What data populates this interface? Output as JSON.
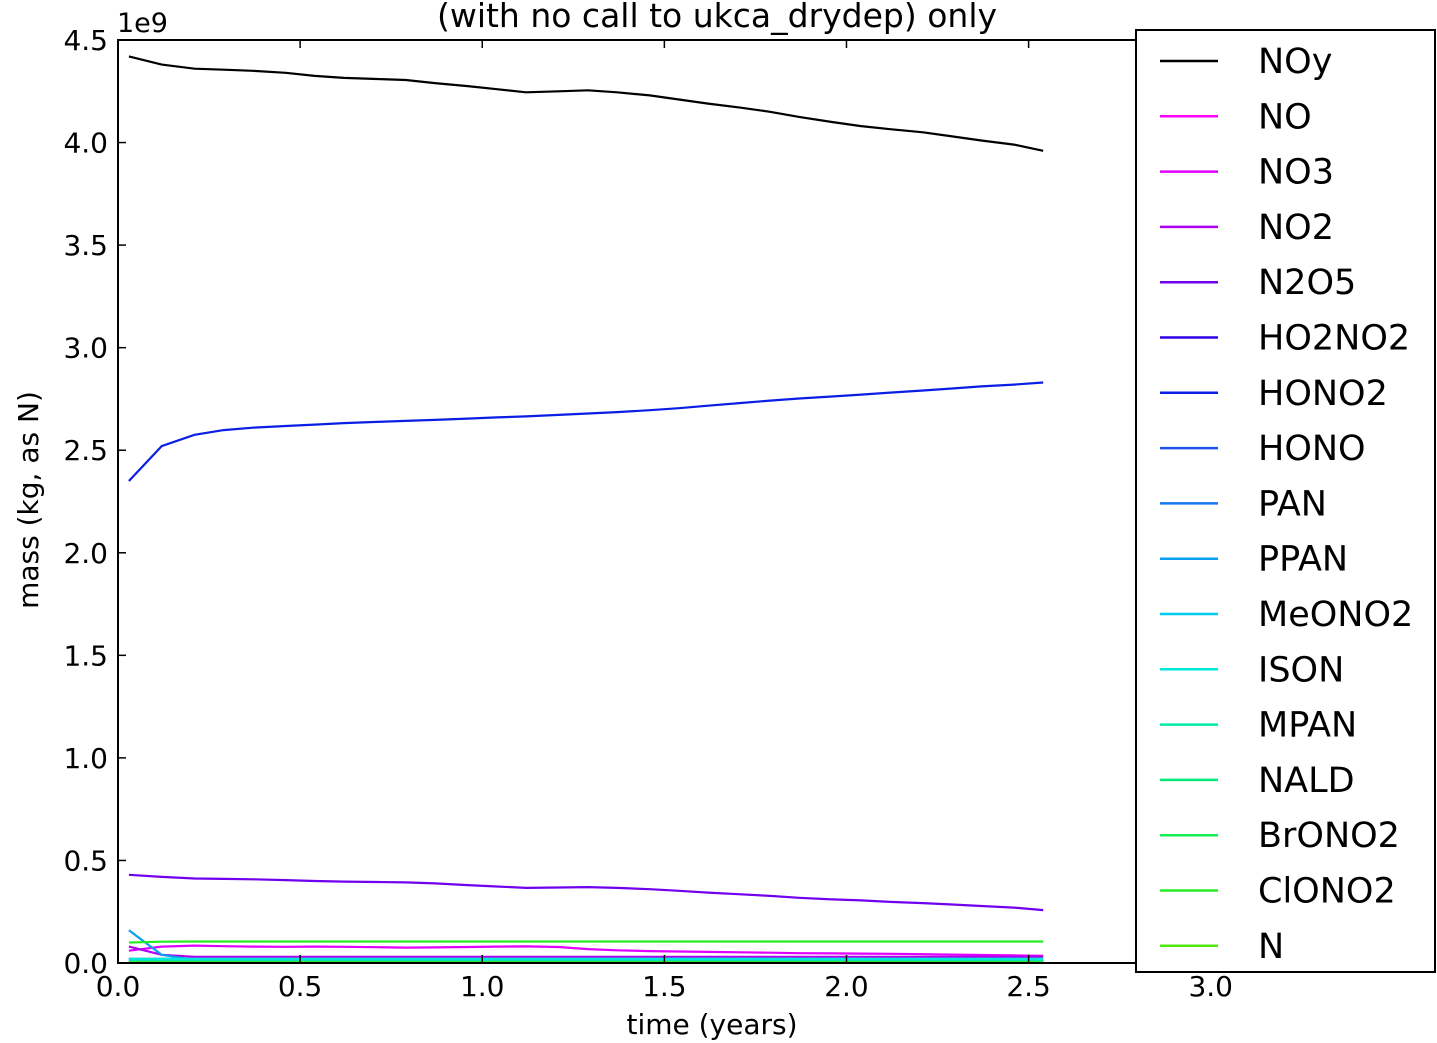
{
  "chart_data": {
    "type": "line",
    "title": "(with no call to ukca_drydep) only",
    "xlabel": "time (years)",
    "ylabel": "mass (kg, as N)",
    "y_multiplier_label": "1e9",
    "xlim": [
      0.0,
      3.3
    ],
    "ylim": [
      0.0,
      4.5
    ],
    "x_ticks": [
      "0.0",
      "0.5",
      "1.0",
      "1.5",
      "2.0",
      "2.5",
      "3.0"
    ],
    "y_ticks": [
      "0.0",
      "0.5",
      "1.0",
      "1.5",
      "2.0",
      "2.5",
      "3.0",
      "3.5",
      "4.0",
      "4.5"
    ],
    "grid": false,
    "legend_position": "right",
    "x": [
      0.03,
      0.12,
      0.21,
      0.29,
      0.37,
      0.46,
      0.54,
      0.62,
      0.71,
      0.79,
      0.87,
      0.96,
      1.04,
      1.12,
      1.21,
      1.29,
      1.37,
      1.46,
      1.54,
      1.62,
      1.71,
      1.79,
      1.87,
      1.96,
      2.04,
      2.12,
      2.21,
      2.29,
      2.37,
      2.46,
      2.54
    ],
    "series": [
      {
        "name": "NOy",
        "color": "#000000",
        "values": [
          4.42,
          4.38,
          4.36,
          4.355,
          4.35,
          4.34,
          4.325,
          4.315,
          4.31,
          4.305,
          4.29,
          4.275,
          4.26,
          4.245,
          4.25,
          4.255,
          4.245,
          4.23,
          4.21,
          4.19,
          4.17,
          4.15,
          4.125,
          4.1,
          4.08,
          4.065,
          4.05,
          4.03,
          4.01,
          3.99,
          3.96
        ]
      },
      {
        "name": "NO",
        "color": "#ff00ff",
        "values": [
          0.02,
          0.01,
          0.01,
          0.01,
          0.01,
          0.01,
          0.01,
          0.01,
          0.01,
          0.01,
          0.01,
          0.01,
          0.01,
          0.01,
          0.01,
          0.01,
          0.01,
          0.01,
          0.01,
          0.01,
          0.01,
          0.01,
          0.01,
          0.01,
          0.01,
          0.01,
          0.01,
          0.01,
          0.01,
          0.01,
          0.01
        ]
      },
      {
        "name": "NO3",
        "color": "#e000ff",
        "values": [
          0.06,
          0.08,
          0.085,
          0.082,
          0.08,
          0.079,
          0.08,
          0.079,
          0.077,
          0.075,
          0.076,
          0.078,
          0.08,
          0.081,
          0.078,
          0.068,
          0.062,
          0.058,
          0.056,
          0.054,
          0.052,
          0.05,
          0.048,
          0.047,
          0.046,
          0.045,
          0.043,
          0.041,
          0.039,
          0.037,
          0.035
        ]
      },
      {
        "name": "NO2",
        "color": "#b000f0",
        "values": [
          0.08,
          0.04,
          0.03,
          0.03,
          0.03,
          0.03,
          0.03,
          0.03,
          0.03,
          0.03,
          0.03,
          0.03,
          0.03,
          0.03,
          0.03,
          0.03,
          0.03,
          0.03,
          0.03,
          0.03,
          0.03,
          0.03,
          0.03,
          0.03,
          0.03,
          0.03,
          0.03,
          0.03,
          0.03,
          0.03,
          0.03
        ]
      },
      {
        "name": "N2O5",
        "color": "#7000ee",
        "values": [
          0.43,
          0.42,
          0.412,
          0.41,
          0.408,
          0.404,
          0.4,
          0.397,
          0.395,
          0.393,
          0.388,
          0.38,
          0.373,
          0.366,
          0.368,
          0.37,
          0.366,
          0.36,
          0.352,
          0.343,
          0.335,
          0.327,
          0.318,
          0.31,
          0.305,
          0.298,
          0.292,
          0.285,
          0.278,
          0.27,
          0.258
        ]
      },
      {
        "name": "HO2NO2",
        "color": "#3000e8",
        "values": [
          0.01,
          0.01,
          0.01,
          0.01,
          0.01,
          0.01,
          0.01,
          0.01,
          0.01,
          0.01,
          0.01,
          0.01,
          0.01,
          0.01,
          0.01,
          0.01,
          0.01,
          0.01,
          0.01,
          0.01,
          0.01,
          0.01,
          0.01,
          0.01,
          0.01,
          0.01,
          0.01,
          0.01,
          0.01,
          0.01,
          0.01
        ]
      },
      {
        "name": "HONO2",
        "color": "#0a1ee6",
        "values": [
          2.35,
          2.52,
          2.575,
          2.598,
          2.61,
          2.618,
          2.625,
          2.632,
          2.638,
          2.643,
          2.648,
          2.654,
          2.66,
          2.665,
          2.672,
          2.679,
          2.686,
          2.695,
          2.705,
          2.717,
          2.73,
          2.742,
          2.752,
          2.762,
          2.771,
          2.781,
          2.791,
          2.801,
          2.811,
          2.82,
          2.83
        ]
      },
      {
        "name": "HONO",
        "color": "#1f52ea",
        "values": [
          0.005,
          0.005,
          0.005,
          0.005,
          0.005,
          0.005,
          0.005,
          0.005,
          0.005,
          0.005,
          0.005,
          0.005,
          0.005,
          0.005,
          0.005,
          0.005,
          0.005,
          0.005,
          0.005,
          0.005,
          0.005,
          0.005,
          0.005,
          0.005,
          0.005,
          0.005,
          0.005,
          0.005,
          0.005,
          0.005,
          0.005
        ]
      },
      {
        "name": "PAN",
        "color": "#1478ee",
        "values": [
          0.02,
          0.02,
          0.02,
          0.02,
          0.02,
          0.02,
          0.02,
          0.02,
          0.02,
          0.02,
          0.02,
          0.02,
          0.02,
          0.02,
          0.02,
          0.02,
          0.02,
          0.02,
          0.02,
          0.02,
          0.02,
          0.02,
          0.02,
          0.02,
          0.02,
          0.02,
          0.02,
          0.02,
          0.02,
          0.02,
          0.02
        ]
      },
      {
        "name": "PPAN",
        "color": "#0aa0f2",
        "values": [
          0.16,
          0.04,
          0.015,
          0.01,
          0.01,
          0.01,
          0.01,
          0.01,
          0.01,
          0.01,
          0.01,
          0.01,
          0.01,
          0.01,
          0.01,
          0.01,
          0.01,
          0.01,
          0.01,
          0.01,
          0.01,
          0.01,
          0.01,
          0.01,
          0.01,
          0.01,
          0.01,
          0.01,
          0.01,
          0.01,
          0.01
        ]
      },
      {
        "name": "MeONO2",
        "color": "#00ccf0",
        "values": [
          0.012,
          0.012,
          0.012,
          0.012,
          0.012,
          0.012,
          0.012,
          0.012,
          0.012,
          0.012,
          0.012,
          0.012,
          0.012,
          0.012,
          0.012,
          0.012,
          0.012,
          0.012,
          0.012,
          0.012,
          0.012,
          0.012,
          0.012,
          0.012,
          0.012,
          0.012,
          0.012,
          0.012,
          0.012,
          0.012,
          0.012
        ]
      },
      {
        "name": "ISON",
        "color": "#00e8d8",
        "values": [
          0.02,
          0.02,
          0.02,
          0.02,
          0.02,
          0.02,
          0.02,
          0.02,
          0.02,
          0.02,
          0.02,
          0.02,
          0.02,
          0.02,
          0.02,
          0.02,
          0.02,
          0.02,
          0.02,
          0.02,
          0.02,
          0.02,
          0.02,
          0.02,
          0.02,
          0.02,
          0.02,
          0.02,
          0.02,
          0.02,
          0.02
        ]
      },
      {
        "name": "MPAN",
        "color": "#00eaa8",
        "values": [
          0.008,
          0.008,
          0.008,
          0.008,
          0.008,
          0.008,
          0.008,
          0.008,
          0.008,
          0.008,
          0.008,
          0.008,
          0.008,
          0.008,
          0.008,
          0.008,
          0.008,
          0.008,
          0.008,
          0.008,
          0.008,
          0.008,
          0.008,
          0.008,
          0.008,
          0.008,
          0.008,
          0.008,
          0.008,
          0.008,
          0.008
        ]
      },
      {
        "name": "NALD",
        "color": "#00ec78",
        "values": [
          0.006,
          0.006,
          0.006,
          0.006,
          0.006,
          0.006,
          0.006,
          0.006,
          0.006,
          0.006,
          0.006,
          0.006,
          0.006,
          0.006,
          0.006,
          0.006,
          0.006,
          0.006,
          0.006,
          0.006,
          0.006,
          0.006,
          0.006,
          0.006,
          0.006,
          0.006,
          0.006,
          0.006,
          0.006,
          0.006,
          0.006
        ]
      },
      {
        "name": "BrONO2",
        "color": "#10ee50",
        "values": [
          0.004,
          0.004,
          0.004,
          0.004,
          0.004,
          0.004,
          0.004,
          0.004,
          0.004,
          0.004,
          0.004,
          0.004,
          0.004,
          0.004,
          0.004,
          0.004,
          0.004,
          0.004,
          0.004,
          0.004,
          0.004,
          0.004,
          0.004,
          0.004,
          0.004,
          0.004,
          0.004,
          0.004,
          0.004,
          0.004,
          0.004
        ]
      },
      {
        "name": "ClONO2",
        "color": "#28ec20",
        "values": [
          0.1,
          0.104,
          0.105,
          0.105,
          0.105,
          0.105,
          0.105,
          0.105,
          0.105,
          0.105,
          0.105,
          0.105,
          0.105,
          0.105,
          0.105,
          0.105,
          0.105,
          0.105,
          0.105,
          0.105,
          0.105,
          0.105,
          0.105,
          0.105,
          0.105,
          0.105,
          0.105,
          0.105,
          0.105,
          0.105,
          0.105
        ]
      },
      {
        "name": "N",
        "color": "#50e810",
        "values": [
          0.002,
          0.002,
          0.002,
          0.002,
          0.002,
          0.002,
          0.002,
          0.002,
          0.002,
          0.002,
          0.002,
          0.002,
          0.002,
          0.002,
          0.002,
          0.002,
          0.002,
          0.002,
          0.002,
          0.002,
          0.002,
          0.002,
          0.002,
          0.002,
          0.002,
          0.002,
          0.002,
          0.002,
          0.002,
          0.002,
          0.002
        ]
      }
    ]
  }
}
